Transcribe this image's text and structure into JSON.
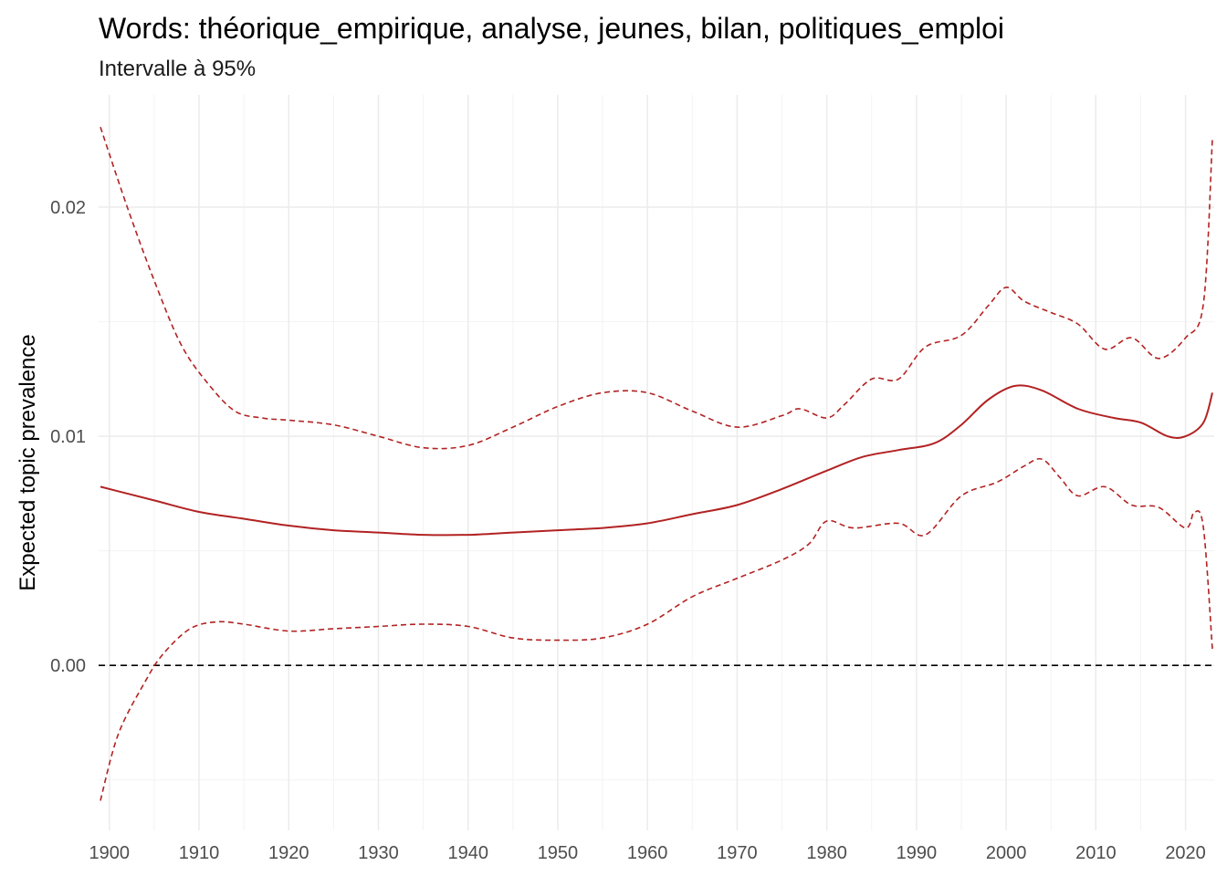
{
  "chart_data": {
    "type": "line",
    "title": "Words: théorique_empirique, analyse, jeunes, bilan, politiques_emploi",
    "subtitle": "Intervalle à 95%",
    "xlabel": "",
    "ylabel": "Expected topic prevalence",
    "xlim": [
      1898.8,
      2023.2
    ],
    "ylim": [
      -0.0072,
      0.0249
    ],
    "x_ticks": [
      "1900",
      "1910",
      "1920",
      "1930",
      "1940",
      "1950",
      "1960",
      "1970",
      "1980",
      "1990",
      "2000",
      "2010",
      "2020"
    ],
    "y_ticks": [
      "0.00",
      "0.01",
      "0.02"
    ],
    "grid": true,
    "reference_line": {
      "y": 0,
      "style": "dashed",
      "color": "#000000"
    },
    "colors": {
      "series": "#b22222"
    },
    "series": [
      {
        "role": "estimate",
        "style": "solid",
        "points": [
          [
            1899,
            0.0078
          ],
          [
            1905,
            0.0072
          ],
          [
            1910,
            0.0067
          ],
          [
            1915,
            0.0064
          ],
          [
            1920,
            0.0061
          ],
          [
            1925,
            0.0059
          ],
          [
            1930,
            0.0058
          ],
          [
            1935,
            0.0057
          ],
          [
            1940,
            0.0057
          ],
          [
            1945,
            0.0058
          ],
          [
            1950,
            0.0059
          ],
          [
            1955,
            0.006
          ],
          [
            1960,
            0.0062
          ],
          [
            1965,
            0.0066
          ],
          [
            1970,
            0.007
          ],
          [
            1975,
            0.0077
          ],
          [
            1980,
            0.0085
          ],
          [
            1984,
            0.0091
          ],
          [
            1988,
            0.0094
          ],
          [
            1992,
            0.0097
          ],
          [
            1995,
            0.0105
          ],
          [
            1998,
            0.0116
          ],
          [
            2001,
            0.0122
          ],
          [
            2004,
            0.012
          ],
          [
            2008,
            0.0112
          ],
          [
            2012,
            0.0108
          ],
          [
            2015,
            0.0106
          ],
          [
            2018,
            0.01
          ],
          [
            2020,
            0.01
          ],
          [
            2022,
            0.0106
          ],
          [
            2023,
            0.0119
          ]
        ]
      },
      {
        "role": "upper-95",
        "style": "dashed",
        "points": [
          [
            1899,
            0.0235
          ],
          [
            1902,
            0.02
          ],
          [
            1905,
            0.0168
          ],
          [
            1908,
            0.014
          ],
          [
            1911,
            0.0123
          ],
          [
            1914,
            0.0111
          ],
          [
            1917,
            0.0108
          ],
          [
            1920,
            0.0107
          ],
          [
            1925,
            0.0105
          ],
          [
            1930,
            0.01
          ],
          [
            1935,
            0.0095
          ],
          [
            1940,
            0.0096
          ],
          [
            1945,
            0.0104
          ],
          [
            1950,
            0.0113
          ],
          [
            1955,
            0.0119
          ],
          [
            1960,
            0.0119
          ],
          [
            1965,
            0.0111
          ],
          [
            1970,
            0.0104
          ],
          [
            1975,
            0.0109
          ],
          [
            1977,
            0.0112
          ],
          [
            1980,
            0.0108
          ],
          [
            1982,
            0.0114
          ],
          [
            1985,
            0.0125
          ],
          [
            1988,
            0.0125
          ],
          [
            1991,
            0.0139
          ],
          [
            1995,
            0.0144
          ],
          [
            1998,
            0.0157
          ],
          [
            2000,
            0.0165
          ],
          [
            2002,
            0.0159
          ],
          [
            2005,
            0.0154
          ],
          [
            2008,
            0.0149
          ],
          [
            2011,
            0.0138
          ],
          [
            2014,
            0.0143
          ],
          [
            2017,
            0.0134
          ],
          [
            2020,
            0.0143
          ],
          [
            2022,
            0.0158
          ],
          [
            2023,
            0.023
          ]
        ]
      },
      {
        "role": "lower-95",
        "style": "dashed",
        "points": [
          [
            1899,
            -0.0059
          ],
          [
            1901,
            -0.003
          ],
          [
            1904,
            -0.0007
          ],
          [
            1906,
            0.0005
          ],
          [
            1909,
            0.0016
          ],
          [
            1912,
            0.0019
          ],
          [
            1915,
            0.0018
          ],
          [
            1920,
            0.0015
          ],
          [
            1925,
            0.0016
          ],
          [
            1930,
            0.0017
          ],
          [
            1935,
            0.0018
          ],
          [
            1940,
            0.0017
          ],
          [
            1945,
            0.0012
          ],
          [
            1950,
            0.0011
          ],
          [
            1955,
            0.0012
          ],
          [
            1960,
            0.0018
          ],
          [
            1965,
            0.003
          ],
          [
            1970,
            0.0038
          ],
          [
            1975,
            0.0046
          ],
          [
            1978,
            0.0053
          ],
          [
            1980,
            0.0063
          ],
          [
            1983,
            0.006
          ],
          [
            1988,
            0.0062
          ],
          [
            1991,
            0.0057
          ],
          [
            1995,
            0.0074
          ],
          [
            1999,
            0.008
          ],
          [
            2002,
            0.0087
          ],
          [
            2004,
            0.009
          ],
          [
            2006,
            0.0082
          ],
          [
            2008,
            0.0074
          ],
          [
            2011,
            0.0078
          ],
          [
            2014,
            0.007
          ],
          [
            2017,
            0.0069
          ],
          [
            2020,
            0.006
          ],
          [
            2021,
            0.0067
          ],
          [
            2022,
            0.006
          ],
          [
            2023,
            0.0007
          ]
        ]
      }
    ]
  }
}
